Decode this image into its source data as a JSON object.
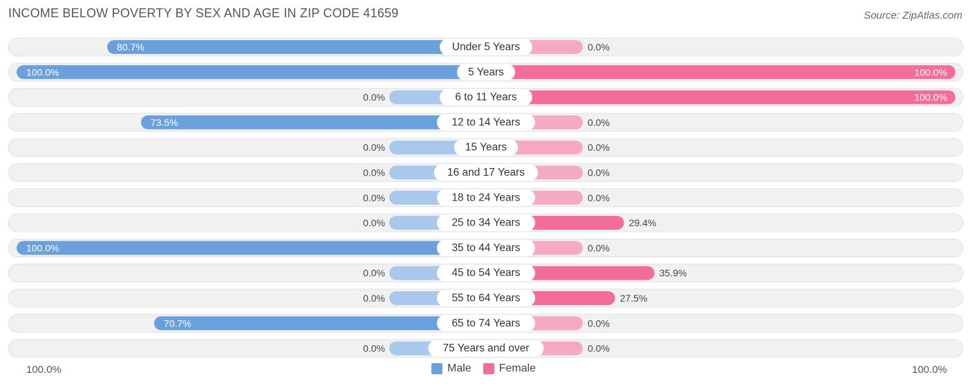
{
  "header": {
    "title": "INCOME BELOW POVERTY BY SEX AND AGE IN ZIP CODE 41659",
    "source": "Source: ZipAtlas.com"
  },
  "legend": {
    "male_label": "Male",
    "female_label": "Female"
  },
  "axis": {
    "left_label": "100.0%",
    "right_label": "100.0%"
  },
  "colors": {
    "male": "#6aa0dc",
    "male_light": "#a9c8ec",
    "female": "#f26e98",
    "female_light": "#f6a9c2",
    "row_bg": "#f0f0f0"
  },
  "chart_data": {
    "type": "bar",
    "orientation": "horizontal-diverging",
    "title": "INCOME BELOW POVERTY BY SEX AND AGE IN ZIP CODE 41659",
    "categories": [
      "Under 5 Years",
      "5 Years",
      "6 to 11 Years",
      "12 to 14 Years",
      "15 Years",
      "16 and 17 Years",
      "18 to 24 Years",
      "25 to 34 Years",
      "35 to 44 Years",
      "45 to 54 Years",
      "55 to 64 Years",
      "65 to 74 Years",
      "75 Years and over"
    ],
    "series": [
      {
        "name": "Male",
        "values": [
          80.7,
          100.0,
          0.0,
          73.5,
          0.0,
          0.0,
          0.0,
          0.0,
          100.0,
          0.0,
          0.0,
          70.7,
          0.0
        ],
        "labels": [
          "80.7%",
          "100.0%",
          "0.0%",
          "73.5%",
          "0.0%",
          "0.0%",
          "0.0%",
          "0.0%",
          "100.0%",
          "0.0%",
          "0.0%",
          "70.7%",
          "0.0%"
        ]
      },
      {
        "name": "Female",
        "values": [
          0.0,
          100.0,
          100.0,
          0.0,
          0.0,
          0.0,
          0.0,
          29.4,
          0.0,
          35.9,
          27.5,
          0.0,
          0.0
        ],
        "labels": [
          "0.0%",
          "100.0%",
          "100.0%",
          "0.0%",
          "0.0%",
          "0.0%",
          "0.0%",
          "29.4%",
          "0.0%",
          "35.9%",
          "27.5%",
          "0.0%",
          "0.0%"
        ]
      }
    ],
    "xlim": [
      -100,
      100
    ],
    "legend_position": "bottom-center"
  }
}
